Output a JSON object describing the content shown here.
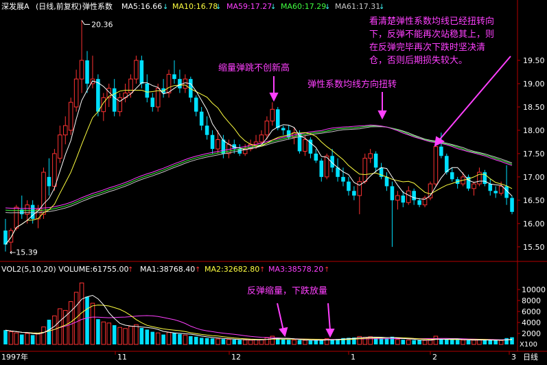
{
  "header": {
    "stock": "深发展A",
    "mode": "(日线,前复权)",
    "indicator": "弹性系数",
    "ma5": "MA5:16.66",
    "ma10": "MA10:16.78",
    "ma59": "MA59:17.27",
    "ma60": "MA60:17.29",
    "ma61": "MA61:17.31"
  },
  "vol_header": {
    "vol": "VOL2(5,10,20) VOLUME:61755.00",
    "ma1": "MA1:38768.40",
    "ma2": "MA2:32682.80",
    "ma3": "MA3:38578.20"
  },
  "annotations": {
    "a1": "缩量弹跳不创新高",
    "a2": "弹性系数均线方向扭转",
    "a3": [
      "看清楚弹性系数均线已经扭转向",
      "下，反弹不能再次站稳其上，则",
      "在反弹完毕再次下跌时坚决清",
      "仓，否则后期损失较大。"
    ],
    "a4": "反弹缩量，下跌放量"
  },
  "bottom": {
    "year": "1997年",
    "m1": "11",
    "m2": "12",
    "m3": "1",
    "m4": "2",
    "m5": "3",
    "period": "日线",
    "vol_unit": "X100"
  },
  "colors": {
    "bg": "#000000",
    "up": "#ff3232",
    "down": "#00e0ff",
    "ma5": "#ffffff",
    "ma10": "#ffff40",
    "ma59": "#ff40ff",
    "ma60": "#40ff40",
    "ma61": "#c8c8c8",
    "axis": "#b40000",
    "annot": "#ff40ff"
  },
  "chart_data": {
    "type": "candlestick",
    "price_ylim": [
      15.35,
      20.5
    ],
    "price_ticks": [
      "19.50",
      "19.00",
      "18.50",
      "18.00",
      "17.50",
      "17.00",
      "16.50",
      "16.00",
      "15.50"
    ],
    "high_label": "20.36",
    "low_label": "15.39",
    "volume_ylim": [
      0,
      12500
    ],
    "volume_ticks": [
      "10000",
      "8000",
      "6000",
      "4000",
      "2000"
    ],
    "candles": [
      [
        15.85,
        16.1,
        15.4,
        15.55
      ],
      [
        15.6,
        15.9,
        15.39,
        15.85
      ],
      [
        15.9,
        16.4,
        15.85,
        16.35
      ],
      [
        16.3,
        16.6,
        16.1,
        16.2
      ],
      [
        16.2,
        16.5,
        16.0,
        16.4
      ],
      [
        16.4,
        16.5,
        16.0,
        16.1
      ],
      [
        16.1,
        16.4,
        15.9,
        16.3
      ],
      [
        16.2,
        17.2,
        16.1,
        17.1
      ],
      [
        17.0,
        17.4,
        16.6,
        16.8
      ],
      [
        16.8,
        17.6,
        16.7,
        17.5
      ],
      [
        17.4,
        18.1,
        17.3,
        17.9
      ],
      [
        17.9,
        18.3,
        17.7,
        18.1
      ],
      [
        18.0,
        18.7,
        17.9,
        18.6
      ],
      [
        18.5,
        19.3,
        18.4,
        19.1
      ],
      [
        19.1,
        20.36,
        18.8,
        19.5
      ],
      [
        19.5,
        19.7,
        18.8,
        19.0
      ],
      [
        19.0,
        19.6,
        18.9,
        19.1
      ],
      [
        19.1,
        19.2,
        18.3,
        18.4
      ],
      [
        18.4,
        18.8,
        18.2,
        18.7
      ],
      [
        18.7,
        19.0,
        18.5,
        18.9
      ],
      [
        18.9,
        19.1,
        18.3,
        18.4
      ],
      [
        18.4,
        18.8,
        18.3,
        18.7
      ],
      [
        18.7,
        19.0,
        18.6,
        18.8
      ],
      [
        18.8,
        19.2,
        18.7,
        19.1
      ],
      [
        19.1,
        19.6,
        19.0,
        19.5
      ],
      [
        19.5,
        19.6,
        18.9,
        19.0
      ],
      [
        19.0,
        19.2,
        18.6,
        18.7
      ],
      [
        18.7,
        18.8,
        18.4,
        18.5
      ],
      [
        18.5,
        19.0,
        18.4,
        18.9
      ],
      [
        18.9,
        19.1,
        18.7,
        18.8
      ],
      [
        18.8,
        19.3,
        18.7,
        19.2
      ],
      [
        19.2,
        19.5,
        19.0,
        19.1
      ],
      [
        19.1,
        19.3,
        18.8,
        18.9
      ],
      [
        18.9,
        19.2,
        18.8,
        19.1
      ],
      [
        19.1,
        19.15,
        18.6,
        18.7
      ],
      [
        18.7,
        18.75,
        18.3,
        18.4
      ],
      [
        18.4,
        18.5,
        18.0,
        18.1
      ],
      [
        18.1,
        18.3,
        17.8,
        17.9
      ],
      [
        17.9,
        18.0,
        17.5,
        17.6
      ],
      [
        17.6,
        18.0,
        17.5,
        17.8
      ],
      [
        17.8,
        17.9,
        17.4,
        17.5
      ],
      [
        17.5,
        17.8,
        17.4,
        17.7
      ],
      [
        17.7,
        17.8,
        17.5,
        17.6
      ],
      [
        17.6,
        17.7,
        17.45,
        17.5
      ],
      [
        17.5,
        17.7,
        17.45,
        17.6
      ],
      [
        17.6,
        17.8,
        17.55,
        17.7
      ],
      [
        17.7,
        17.9,
        17.6,
        17.75
      ],
      [
        17.75,
        18.0,
        17.7,
        17.9
      ],
      [
        17.9,
        18.3,
        17.8,
        18.2
      ],
      [
        18.2,
        18.6,
        18.1,
        18.45
      ],
      [
        18.45,
        18.5,
        18.0,
        18.05
      ],
      [
        18.05,
        18.1,
        17.9,
        18.0
      ],
      [
        18.0,
        18.1,
        17.8,
        17.85
      ],
      [
        17.85,
        18.05,
        17.7,
        17.95
      ],
      [
        17.95,
        18.0,
        17.5,
        17.55
      ],
      [
        17.55,
        17.9,
        17.45,
        17.8
      ],
      [
        17.8,
        17.85,
        17.4,
        17.5
      ],
      [
        17.5,
        17.6,
        17.3,
        17.35
      ],
      [
        17.35,
        17.4,
        16.9,
        17.0
      ],
      [
        17.0,
        17.5,
        16.95,
        17.45
      ],
      [
        17.45,
        17.6,
        17.1,
        17.2
      ],
      [
        17.2,
        17.4,
        16.9,
        17.0
      ],
      [
        17.0,
        17.2,
        16.8,
        16.9
      ],
      [
        16.9,
        17.0,
        16.6,
        16.7
      ],
      [
        16.7,
        16.8,
        16.5,
        16.6
      ],
      [
        16.6,
        17.0,
        16.2,
        16.9
      ],
      [
        16.9,
        17.5,
        16.85,
        17.4
      ],
      [
        17.4,
        17.6,
        17.3,
        17.5
      ],
      [
        17.5,
        17.55,
        17.1,
        17.2
      ],
      [
        17.2,
        17.3,
        16.95,
        17.0
      ],
      [
        17.0,
        17.1,
        16.7,
        16.8
      ],
      [
        16.8,
        16.9,
        15.5,
        16.5
      ],
      [
        16.5,
        16.7,
        16.3,
        16.6
      ],
      [
        16.6,
        16.7,
        16.35,
        16.45
      ],
      [
        16.45,
        16.8,
        16.4,
        16.7
      ],
      [
        16.7,
        16.75,
        16.4,
        16.5
      ],
      [
        16.5,
        16.55,
        16.35,
        16.4
      ],
      [
        16.4,
        16.6,
        16.35,
        16.55
      ],
      [
        16.55,
        16.9,
        16.5,
        16.85
      ],
      [
        16.85,
        17.8,
        16.8,
        17.65
      ],
      [
        17.65,
        17.95,
        17.4,
        17.45
      ],
      [
        17.45,
        17.5,
        17.05,
        17.1
      ],
      [
        17.1,
        17.2,
        16.9,
        16.95
      ],
      [
        16.95,
        17.0,
        16.75,
        16.85
      ],
      [
        16.85,
        17.1,
        16.8,
        17.0
      ],
      [
        17.0,
        17.05,
        16.7,
        16.75
      ],
      [
        16.75,
        16.9,
        16.6,
        16.85
      ],
      [
        16.85,
        17.2,
        16.8,
        17.1
      ],
      [
        17.1,
        17.15,
        16.8,
        16.85
      ],
      [
        16.85,
        16.95,
        16.6,
        16.7
      ],
      [
        16.7,
        16.8,
        16.55,
        16.65
      ],
      [
        16.65,
        16.9,
        16.6,
        16.8
      ],
      [
        16.8,
        17.25,
        16.4,
        16.55
      ],
      [
        16.55,
        16.6,
        16.2,
        16.25
      ]
    ],
    "volumes": [
      2600,
      2300,
      2100,
      1800,
      2000,
      1700,
      1900,
      3200,
      4500,
      5200,
      6500,
      6200,
      7800,
      9500,
      11200,
      8700,
      7500,
      4600,
      4100,
      3900,
      3500,
      3100,
      2900,
      3300,
      3600,
      3000,
      2700,
      2300,
      2100,
      1800,
      2200,
      2100,
      1900,
      1700,
      1500,
      1400,
      1200,
      1150,
      1100,
      1000,
      980,
      900,
      870,
      820,
      800,
      780,
      850,
      900,
      1200,
      1500,
      1100,
      900,
      850,
      800,
      780,
      750,
      730,
      760,
      800,
      1050,
      900,
      980,
      1150,
      1200,
      1250,
      1450,
      1300,
      1400,
      1250,
      1150,
      1100,
      1400,
      900,
      850,
      800,
      780,
      750,
      720,
      780,
      1500,
      1000,
      900,
      850,
      820,
      800,
      750,
      780,
      900,
      780,
      760,
      740,
      720,
      1150,
      1300
    ],
    "lines_price": {
      "ma5": "MA5",
      "ma10": "MA10",
      "ma59": "MA59",
      "ma60": "MA60",
      "ma61": "MA61"
    },
    "x_labels": [
      "1997年",
      "11",
      "12",
      "1",
      "2",
      "3"
    ]
  }
}
